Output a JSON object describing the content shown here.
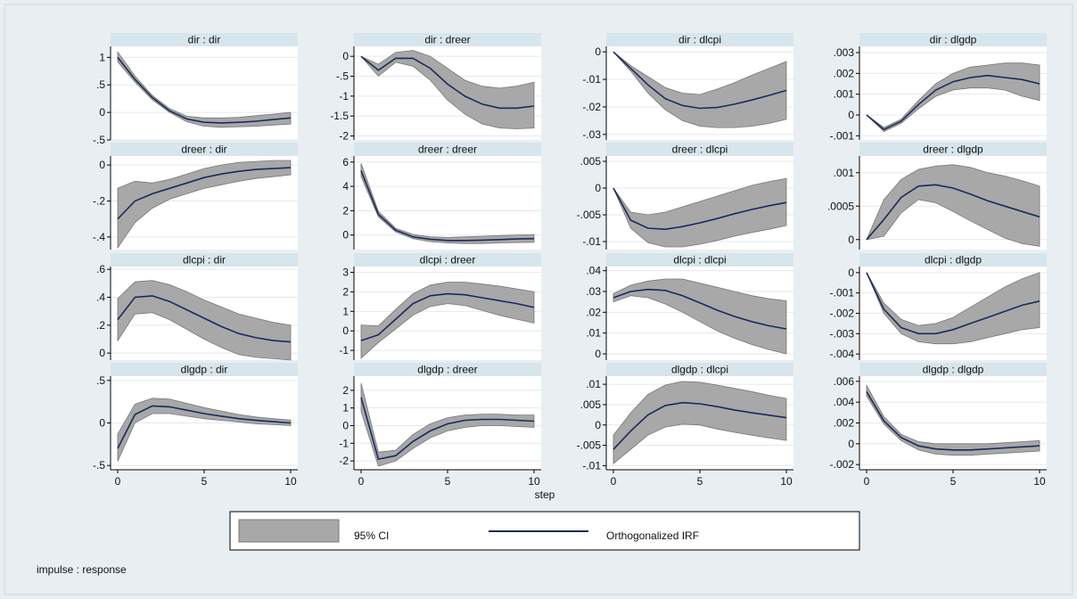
{
  "figure": {
    "xlabel": "step",
    "note": "impulse : response",
    "legend": {
      "ci_label": "95% CI",
      "irf_label": "Orthogonalized IRF"
    },
    "colors": {
      "background": "#e8eef2",
      "plot_bg": "#ffffff",
      "title_bar": "#d7e5ec",
      "ci_fill": "#a8a8a8",
      "ci_stroke": "#777777",
      "line": "#1a2a5a",
      "grid": "#e4eaee"
    }
  },
  "chart_data": [
    {
      "type": "area",
      "title": "dir : dir",
      "x": [
        0,
        1,
        2,
        3,
        4,
        5,
        6,
        7,
        8,
        9,
        10
      ],
      "ylim": [
        -0.5,
        1.2
      ],
      "yticks": [
        1,
        0.5,
        0,
        -0.5
      ],
      "yticklabels": [
        "1",
        ".5",
        "0",
        "-.5"
      ],
      "xticks": [
        0,
        5,
        10
      ],
      "irf": [
        1.0,
        0.6,
        0.27,
        0.03,
        -0.12,
        -0.18,
        -0.19,
        -0.18,
        -0.16,
        -0.13,
        -0.1
      ],
      "lower": [
        0.92,
        0.55,
        0.23,
        0.0,
        -0.17,
        -0.25,
        -0.27,
        -0.26,
        -0.25,
        -0.23,
        -0.21
      ],
      "upper": [
        1.1,
        0.66,
        0.31,
        0.07,
        -0.07,
        -0.1,
        -0.1,
        -0.09,
        -0.06,
        -0.03,
        0.0
      ]
    },
    {
      "type": "area",
      "title": "dir : dreer",
      "x": [
        0,
        1,
        2,
        3,
        4,
        5,
        6,
        7,
        8,
        9,
        10
      ],
      "ylim": [
        -2.1,
        0.25
      ],
      "yticks": [
        0,
        -0.5,
        -1,
        -1.5,
        -2
      ],
      "yticklabels": [
        "0",
        "-.5",
        "-1",
        "-1.5",
        "-2"
      ],
      "xticks": [
        0,
        5,
        10
      ],
      "irf": [
        0.0,
        -0.35,
        -0.05,
        -0.05,
        -0.3,
        -0.7,
        -1.0,
        -1.2,
        -1.3,
        -1.3,
        -1.25
      ],
      "lower": [
        0.0,
        -0.5,
        -0.15,
        -0.25,
        -0.6,
        -1.1,
        -1.45,
        -1.7,
        -1.8,
        -1.82,
        -1.8
      ],
      "upper": [
        0.0,
        -0.2,
        0.1,
        0.15,
        0.0,
        -0.3,
        -0.6,
        -0.75,
        -0.8,
        -0.75,
        -0.65
      ]
    },
    {
      "type": "area",
      "title": "dir : dlcpi",
      "x": [
        0,
        1,
        2,
        3,
        4,
        5,
        6,
        7,
        8,
        9,
        10
      ],
      "ylim": [
        -0.032,
        0.002
      ],
      "yticks": [
        0,
        -0.01,
        -0.02,
        -0.03
      ],
      "yticklabels": [
        "0",
        "-.01",
        "-.02",
        "-.03"
      ],
      "xticks": [
        0,
        5,
        10
      ],
      "irf": [
        0.0,
        -0.006,
        -0.012,
        -0.017,
        -0.0195,
        -0.0205,
        -0.0202,
        -0.019,
        -0.0175,
        -0.0158,
        -0.014
      ],
      "lower": [
        0.0,
        -0.007,
        -0.015,
        -0.021,
        -0.025,
        -0.027,
        -0.0275,
        -0.0275,
        -0.027,
        -0.026,
        -0.0245
      ],
      "upper": [
        0.0,
        -0.005,
        -0.009,
        -0.013,
        -0.015,
        -0.0155,
        -0.0135,
        -0.0112,
        -0.0085,
        -0.006,
        -0.0035
      ]
    },
    {
      "type": "area",
      "title": "dir : dlgdp",
      "x": [
        0,
        1,
        2,
        3,
        4,
        5,
        6,
        7,
        8,
        9,
        10
      ],
      "ylim": [
        -0.0012,
        0.0033
      ],
      "yticks": [
        0.003,
        0.002,
        0.001,
        0,
        -0.001
      ],
      "yticklabels": [
        ".003",
        ".002",
        ".001",
        "0",
        "-.001"
      ],
      "xticks": [
        0,
        5,
        10
      ],
      "irf": [
        0.0,
        -0.0007,
        -0.0003,
        0.0005,
        0.0012,
        0.0016,
        0.0018,
        0.0019,
        0.0018,
        0.0017,
        0.0015
      ],
      "lower": [
        0.0,
        -0.0008,
        -0.0004,
        0.0003,
        0.0009,
        0.0012,
        0.0013,
        0.0013,
        0.0012,
        0.0009,
        0.0007
      ],
      "upper": [
        0.0,
        -0.0006,
        -0.0002,
        0.0007,
        0.0015,
        0.002,
        0.0023,
        0.0024,
        0.0025,
        0.0025,
        0.0024
      ]
    },
    {
      "type": "area",
      "title": "dreer : dir",
      "x": [
        0,
        1,
        2,
        3,
        4,
        5,
        6,
        7,
        8,
        9,
        10
      ],
      "ylim": [
        -0.47,
        0.05
      ],
      "yticks": [
        0,
        -0.2,
        -0.4
      ],
      "yticklabels": [
        "0",
        "-.2",
        "-.4"
      ],
      "xticks": [
        0,
        5,
        10
      ],
      "irf": [
        -0.3,
        -0.2,
        -0.16,
        -0.13,
        -0.1,
        -0.07,
        -0.05,
        -0.035,
        -0.025,
        -0.02,
        -0.015
      ],
      "lower": [
        -0.46,
        -0.32,
        -0.24,
        -0.19,
        -0.16,
        -0.13,
        -0.11,
        -0.09,
        -0.075,
        -0.065,
        -0.055
      ],
      "upper": [
        -0.13,
        -0.09,
        -0.1,
        -0.08,
        -0.05,
        -0.02,
        0.0,
        0.015,
        0.02,
        0.025,
        0.025
      ]
    },
    {
      "type": "area",
      "title": "dreer : dreer",
      "x": [
        0,
        1,
        2,
        3,
        4,
        5,
        6,
        7,
        8,
        9,
        10
      ],
      "ylim": [
        -1.2,
        6.5
      ],
      "yticks": [
        6,
        4,
        2,
        0
      ],
      "yticklabels": [
        "6",
        "4",
        "2",
        "0"
      ],
      "xticks": [
        0,
        5,
        10
      ],
      "irf": [
        5.3,
        1.7,
        0.4,
        -0.15,
        -0.35,
        -0.45,
        -0.45,
        -0.42,
        -0.38,
        -0.33,
        -0.3
      ],
      "lower": [
        4.8,
        1.5,
        0.25,
        -0.3,
        -0.55,
        -0.65,
        -0.7,
        -0.7,
        -0.65,
        -0.62,
        -0.6
      ],
      "upper": [
        5.9,
        1.95,
        0.55,
        0.05,
        -0.15,
        -0.2,
        -0.15,
        -0.1,
        -0.05,
        0.0,
        0.05
      ]
    },
    {
      "type": "area",
      "title": "dreer : dlcpi",
      "x": [
        0,
        1,
        2,
        3,
        4,
        5,
        6,
        7,
        8,
        9,
        10
      ],
      "ylim": [
        -0.0115,
        0.006
      ],
      "yticks": [
        0.005,
        0,
        -0.005,
        -0.01
      ],
      "yticklabels": [
        ".005",
        "0",
        "-.005",
        "-.01"
      ],
      "xticks": [
        0,
        5,
        10
      ],
      "irf": [
        0.0,
        -0.006,
        -0.0075,
        -0.0077,
        -0.0072,
        -0.0065,
        -0.0057,
        -0.0048,
        -0.004,
        -0.0033,
        -0.0027
      ],
      "lower": [
        0.0,
        -0.0075,
        -0.0102,
        -0.011,
        -0.011,
        -0.0105,
        -0.0098,
        -0.009,
        -0.0083,
        -0.0077,
        -0.007
      ],
      "upper": [
        0.0,
        -0.0045,
        -0.005,
        -0.0045,
        -0.0035,
        -0.0025,
        -0.0015,
        -0.0005,
        0.0005,
        0.0012,
        0.0018
      ]
    },
    {
      "type": "area",
      "title": "dreer : dlgdp",
      "x": [
        0,
        1,
        2,
        3,
        4,
        5,
        6,
        7,
        8,
        9,
        10
      ],
      "ylim": [
        -0.00015,
        0.00125
      ],
      "yticks": [
        0.001,
        0.0005,
        0
      ],
      "yticklabels": [
        ".001",
        ".0005",
        "0"
      ],
      "xticks": [
        0,
        5,
        10
      ],
      "irf": [
        0.0,
        0.0003,
        0.00063,
        0.0008,
        0.00082,
        0.00077,
        0.00068,
        0.00058,
        0.0005,
        0.00042,
        0.00034
      ],
      "lower": [
        0.0,
        5e-05,
        0.0004,
        0.0006,
        0.00055,
        0.00042,
        0.00028,
        0.00015,
        2e-05,
        -6e-05,
        -0.0001
      ],
      "upper": [
        0.0,
        0.0006,
        0.0009,
        0.00105,
        0.0011,
        0.00112,
        0.00108,
        0.001,
        0.00095,
        0.00088,
        0.0008
      ]
    },
    {
      "type": "area",
      "title": "dlcpi : dir",
      "x": [
        0,
        1,
        2,
        3,
        4,
        5,
        6,
        7,
        8,
        9,
        10
      ],
      "ylim": [
        -0.05,
        0.62
      ],
      "yticks": [
        0.6,
        0.4,
        0.2,
        0
      ],
      "yticklabels": [
        ".6",
        ".4",
        ".2",
        "0"
      ],
      "xticks": [
        0,
        5,
        10
      ],
      "irf": [
        0.24,
        0.4,
        0.41,
        0.37,
        0.31,
        0.25,
        0.19,
        0.14,
        0.11,
        0.09,
        0.08
      ],
      "lower": [
        0.09,
        0.28,
        0.29,
        0.24,
        0.17,
        0.1,
        0.04,
        -0.01,
        -0.03,
        -0.04,
        -0.05
      ],
      "upper": [
        0.39,
        0.51,
        0.52,
        0.49,
        0.44,
        0.38,
        0.33,
        0.28,
        0.25,
        0.22,
        0.2
      ]
    },
    {
      "type": "area",
      "title": "dlcpi : dreer",
      "x": [
        0,
        1,
        2,
        3,
        4,
        5,
        6,
        7,
        8,
        9,
        10
      ],
      "ylim": [
        -1.5,
        3.3
      ],
      "yticks": [
        3,
        2,
        1,
        0,
        -1
      ],
      "yticklabels": [
        "3",
        "2",
        "1",
        "0",
        "-1"
      ],
      "xticks": [
        0,
        5,
        10
      ],
      "irf": [
        -0.5,
        -0.2,
        0.6,
        1.4,
        1.8,
        1.9,
        1.85,
        1.7,
        1.55,
        1.4,
        1.2
      ],
      "lower": [
        -1.4,
        -0.6,
        0.1,
        0.8,
        1.25,
        1.4,
        1.3,
        1.05,
        0.8,
        0.6,
        0.4
      ],
      "upper": [
        0.3,
        0.25,
        1.1,
        1.9,
        2.35,
        2.5,
        2.5,
        2.4,
        2.3,
        2.15,
        2.0
      ]
    },
    {
      "type": "area",
      "title": "dlcpi : dlcpi",
      "x": [
        0,
        1,
        2,
        3,
        4,
        5,
        6,
        7,
        8,
        9,
        10
      ],
      "ylim": [
        -0.003,
        0.042
      ],
      "yticks": [
        0.04,
        0.03,
        0.02,
        0.01,
        0
      ],
      "yticklabels": [
        ".04",
        ".03",
        ".02",
        ".01",
        "0"
      ],
      "xticks": [
        0,
        5,
        10
      ],
      "irf": [
        0.027,
        0.03,
        0.031,
        0.0305,
        0.028,
        0.0245,
        0.021,
        0.018,
        0.0155,
        0.0135,
        0.012
      ],
      "lower": [
        0.025,
        0.028,
        0.027,
        0.024,
        0.02,
        0.0155,
        0.011,
        0.0075,
        0.0045,
        0.002,
        0.0
      ],
      "upper": [
        0.029,
        0.033,
        0.035,
        0.036,
        0.036,
        0.034,
        0.032,
        0.03,
        0.028,
        0.0265,
        0.0255
      ]
    },
    {
      "type": "area",
      "title": "dlcpi : dlgdp",
      "x": [
        0,
        1,
        2,
        3,
        4,
        5,
        6,
        7,
        8,
        9,
        10
      ],
      "ylim": [
        -0.0043,
        0.0003
      ],
      "yticks": [
        0,
        -0.001,
        -0.002,
        -0.003,
        -0.004
      ],
      "yticklabels": [
        "0",
        "-.001",
        "-.002",
        "-.003",
        "-.004"
      ],
      "xticks": [
        0,
        5,
        10
      ],
      "irf": [
        0.0,
        -0.0018,
        -0.0027,
        -0.003,
        -0.003,
        -0.0028,
        -0.0025,
        -0.0022,
        -0.0019,
        -0.0016,
        -0.0014
      ],
      "lower": [
        0.0,
        -0.002,
        -0.003,
        -0.0034,
        -0.0035,
        -0.0035,
        -0.0034,
        -0.0032,
        -0.003,
        -0.0028,
        -0.0027
      ],
      "upper": [
        0.0,
        -0.0015,
        -0.0023,
        -0.0026,
        -0.0025,
        -0.0022,
        -0.0017,
        -0.0012,
        -0.0007,
        -0.0003,
        0.0
      ]
    },
    {
      "type": "area",
      "title": "dlgdp : dir",
      "x": [
        0,
        1,
        2,
        3,
        4,
        5,
        6,
        7,
        8,
        9,
        10
      ],
      "ylim": [
        -0.55,
        0.55
      ],
      "yticks": [
        0.5,
        0,
        -0.5
      ],
      "yticklabels": [
        ".5",
        "0",
        "-.5"
      ],
      "xticks": [
        0,
        5,
        10
      ],
      "irf": [
        -0.3,
        0.1,
        0.2,
        0.19,
        0.15,
        0.11,
        0.08,
        0.05,
        0.03,
        0.015,
        0.0
      ],
      "lower": [
        -0.45,
        0.0,
        0.11,
        0.11,
        0.08,
        0.05,
        0.03,
        0.01,
        -0.01,
        -0.02,
        -0.03
      ],
      "upper": [
        -0.13,
        0.22,
        0.29,
        0.28,
        0.23,
        0.18,
        0.14,
        0.1,
        0.07,
        0.05,
        0.035
      ]
    },
    {
      "type": "area",
      "title": "dlgdp : dreer",
      "x": [
        0,
        1,
        2,
        3,
        4,
        5,
        6,
        7,
        8,
        9,
        10
      ],
      "ylim": [
        -2.5,
        2.8
      ],
      "yticks": [
        2,
        1,
        0,
        -1,
        -2
      ],
      "yticklabels": [
        "2",
        "1",
        "0",
        "-1",
        "-2"
      ],
      "xticks": [
        0,
        5,
        10
      ],
      "irf": [
        1.6,
        -1.9,
        -1.7,
        -0.9,
        -0.3,
        0.1,
        0.3,
        0.35,
        0.35,
        0.3,
        0.25
      ],
      "lower": [
        0.8,
        -2.3,
        -2.0,
        -1.3,
        -0.7,
        -0.3,
        -0.1,
        0.0,
        0.0,
        -0.05,
        -0.1
      ],
      "upper": [
        2.4,
        -1.5,
        -1.4,
        -0.5,
        0.1,
        0.45,
        0.6,
        0.65,
        0.65,
        0.6,
        0.6
      ]
    },
    {
      "type": "area",
      "title": "dlgdp : dlcpi",
      "x": [
        0,
        1,
        2,
        3,
        4,
        5,
        6,
        7,
        8,
        9,
        10
      ],
      "ylim": [
        -0.011,
        0.012
      ],
      "yticks": [
        0.01,
        0.005,
        0,
        -0.005,
        -0.01
      ],
      "yticklabels": [
        ".01",
        ".005",
        "0",
        "-.005",
        "-.01"
      ],
      "xticks": [
        0,
        5,
        10
      ],
      "irf": [
        -0.006,
        -0.0015,
        0.0025,
        0.0048,
        0.0055,
        0.0052,
        0.0045,
        0.0037,
        0.003,
        0.0024,
        0.0018
      ],
      "lower": [
        -0.0095,
        -0.006,
        -0.0025,
        -0.0005,
        0.0002,
        0.0,
        -0.001,
        -0.0018,
        -0.0025,
        -0.0032,
        -0.0038
      ],
      "upper": [
        -0.0025,
        0.003,
        0.0075,
        0.0098,
        0.0107,
        0.0105,
        0.0098,
        0.009,
        0.0082,
        0.0073,
        0.0065
      ]
    },
    {
      "type": "area",
      "title": "dlgdp : dlgdp",
      "x": [
        0,
        1,
        2,
        3,
        4,
        5,
        6,
        7,
        8,
        9,
        10
      ],
      "ylim": [
        -0.0025,
        0.0065
      ],
      "yticks": [
        0.006,
        0.004,
        0.002,
        0,
        -0.002
      ],
      "yticklabels": [
        ".006",
        ".004",
        ".002",
        "0",
        "-.002"
      ],
      "xticks": [
        0,
        5,
        10
      ],
      "irf": [
        0.005,
        0.0022,
        0.0006,
        -0.0002,
        -0.0005,
        -0.0006,
        -0.0006,
        -0.0005,
        -0.0004,
        -0.0003,
        -0.0002
      ],
      "lower": [
        0.0046,
        0.0019,
        0.0003,
        -0.0006,
        -0.001,
        -0.0011,
        -0.0011,
        -0.001,
        -0.0009,
        -0.0008,
        -0.0007
      ],
      "upper": [
        0.0056,
        0.0026,
        0.0009,
        0.0002,
        0.0,
        0.0,
        0.0,
        0.0,
        0.0001,
        0.0002,
        0.0003
      ]
    }
  ]
}
